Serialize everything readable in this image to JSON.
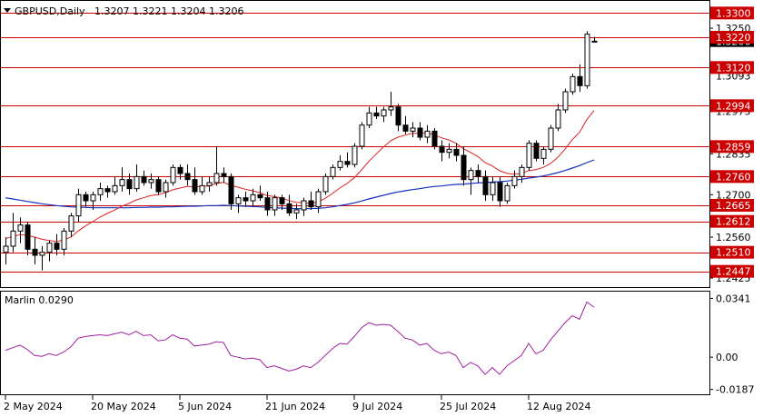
{
  "header": {
    "symbol_label": "GBPUSD,Daily",
    "ohlc_label": "1.3207 1.3221 1.3204 1.3206"
  },
  "price_axis": {
    "ticks": [
      "1.3250",
      "1.3120",
      "1.2975",
      "1.2835",
      "1.2700",
      "1.2560",
      "1.2425"
    ],
    "tick_values": [
      1.325,
      1.312,
      1.2975,
      1.2835,
      1.27,
      1.256,
      1.2425
    ],
    "range": [
      1.2395,
      1.334
    ]
  },
  "levels": [
    {
      "label": "1.3300",
      "value": 1.33
    },
    {
      "label": "1.3220",
      "value": 1.322
    },
    {
      "label": "1.3120",
      "value": 1.312
    },
    {
      "label": "1.2994",
      "value": 1.2994
    },
    {
      "label": "1.2859",
      "value": 1.2859
    },
    {
      "label": "1.2760",
      "value": 1.276
    },
    {
      "label": "1.2665",
      "value": 1.2665
    },
    {
      "label": "1.2612",
      "value": 1.2612
    },
    {
      "label": "1.2510",
      "value": 1.251
    },
    {
      "label": "1.2447",
      "value": 1.2447
    }
  ],
  "bid_label": "1.3206",
  "bid_value": 1.3206,
  "extra_labels": [
    {
      "label": "1.3093",
      "value": 1.3093
    }
  ],
  "indicator": {
    "name_label": "Marlin 0.0290",
    "ticks": [
      "0.0341",
      "0.00",
      "-0.0187"
    ],
    "tick_values": [
      0.0341,
      0.0,
      -0.0187
    ],
    "range": [
      -0.0215,
      0.038
    ]
  },
  "time_axis": {
    "labels": [
      "2 May 2024",
      "20 May 2024",
      "5 Jun 2024",
      "21 Jun 2024",
      "9 Jul 2024",
      "25 Jul 2024",
      "12 Aug 2024"
    ],
    "label_index": [
      0,
      12,
      24,
      36,
      48,
      60,
      72
    ]
  },
  "colors": {
    "bull_candle": "#ffffff",
    "bear_candle": "#000000",
    "level_line": "#cc0000",
    "level_tag": "#cc0000",
    "ma_fast": "#e02020",
    "ma_slow": "#1030c0",
    "oscillator": "#a020a0",
    "grid": "#d8d8d8"
  },
  "chart_data": {
    "type": "candlestick",
    "symbol": "GBPUSD",
    "timeframe": "Daily",
    "candles": [
      [
        1.251,
        1.256,
        1.247,
        1.253
      ],
      [
        1.253,
        1.264,
        1.251,
        1.258
      ],
      [
        1.258,
        1.2625,
        1.254,
        1.26
      ],
      [
        1.26,
        1.261,
        1.25,
        1.252
      ],
      [
        1.252,
        1.256,
        1.247,
        1.25
      ],
      [
        1.25,
        1.253,
        1.245,
        1.251
      ],
      [
        1.251,
        1.255,
        1.248,
        1.254
      ],
      [
        1.254,
        1.257,
        1.25,
        1.252
      ],
      [
        1.252,
        1.259,
        1.25,
        1.258
      ],
      [
        1.258,
        1.264,
        1.256,
        1.263
      ],
      [
        1.263,
        1.272,
        1.261,
        1.27
      ],
      [
        1.27,
        1.271,
        1.266,
        1.268
      ],
      [
        1.268,
        1.271,
        1.265,
        1.27
      ],
      [
        1.27,
        1.274,
        1.268,
        1.272
      ],
      [
        1.272,
        1.273,
        1.269,
        1.271
      ],
      [
        1.271,
        1.276,
        1.27,
        1.273
      ],
      [
        1.273,
        1.279,
        1.271,
        1.275
      ],
      [
        1.275,
        1.277,
        1.27,
        1.272
      ],
      [
        1.272,
        1.28,
        1.271,
        1.276
      ],
      [
        1.276,
        1.278,
        1.273,
        1.274
      ],
      [
        1.274,
        1.277,
        1.272,
        1.275
      ],
      [
        1.275,
        1.276,
        1.27,
        1.271
      ],
      [
        1.271,
        1.275,
        1.269,
        1.274
      ],
      [
        1.274,
        1.28,
        1.273,
        1.279
      ],
      [
        1.279,
        1.28,
        1.275,
        1.277
      ],
      [
        1.277,
        1.28,
        1.273,
        1.275
      ],
      [
        1.275,
        1.279,
        1.27,
        1.271
      ],
      [
        1.271,
        1.276,
        1.27,
        1.273
      ],
      [
        1.273,
        1.276,
        1.271,
        1.274
      ],
      [
        1.274,
        1.286,
        1.273,
        1.277
      ],
      [
        1.277,
        1.279,
        1.274,
        1.276
      ],
      [
        1.276,
        1.277,
        1.265,
        1.267
      ],
      [
        1.267,
        1.27,
        1.264,
        1.269
      ],
      [
        1.269,
        1.271,
        1.266,
        1.268
      ],
      [
        1.268,
        1.272,
        1.266,
        1.27
      ],
      [
        1.27,
        1.273,
        1.268,
        1.269
      ],
      [
        1.269,
        1.271,
        1.263,
        1.265
      ],
      [
        1.265,
        1.27,
        1.263,
        1.269
      ],
      [
        1.269,
        1.27,
        1.265,
        1.267
      ],
      [
        1.267,
        1.27,
        1.263,
        1.264
      ],
      [
        1.264,
        1.267,
        1.262,
        1.265
      ],
      [
        1.265,
        1.269,
        1.263,
        1.268
      ],
      [
        1.268,
        1.271,
        1.265,
        1.266
      ],
      [
        1.266,
        1.272,
        1.264,
        1.271
      ],
      [
        1.271,
        1.277,
        1.27,
        1.276
      ],
      [
        1.276,
        1.28,
        1.275,
        1.279
      ],
      [
        1.279,
        1.283,
        1.278,
        1.281
      ],
      [
        1.281,
        1.284,
        1.279,
        1.28
      ],
      [
        1.28,
        1.287,
        1.279,
        1.286
      ],
      [
        1.286,
        1.294,
        1.285,
        1.293
      ],
      [
        1.293,
        1.299,
        1.292,
        1.297
      ],
      [
        1.297,
        1.299,
        1.295,
        1.296
      ],
      [
        1.296,
        1.299,
        1.294,
        1.298
      ],
      [
        1.298,
        1.304,
        1.296,
        1.299
      ],
      [
        1.299,
        1.3,
        1.291,
        1.293
      ],
      [
        1.293,
        1.296,
        1.29,
        1.291
      ],
      [
        1.291,
        1.294,
        1.289,
        1.292
      ],
      [
        1.292,
        1.294,
        1.288,
        1.289
      ],
      [
        1.289,
        1.293,
        1.287,
        1.291
      ],
      [
        1.291,
        1.292,
        1.285,
        1.286
      ],
      [
        1.286,
        1.288,
        1.281,
        1.284
      ],
      [
        1.284,
        1.287,
        1.282,
        1.285
      ],
      [
        1.285,
        1.287,
        1.281,
        1.283
      ],
      [
        1.283,
        1.286,
        1.273,
        1.275
      ],
      [
        1.275,
        1.279,
        1.27,
        1.278
      ],
      [
        1.278,
        1.28,
        1.274,
        1.276
      ],
      [
        1.276,
        1.278,
        1.268,
        1.27
      ],
      [
        1.27,
        1.276,
        1.268,
        1.274
      ],
      [
        1.274,
        1.276,
        1.266,
        1.268
      ],
      [
        1.268,
        1.274,
        1.267,
        1.273
      ],
      [
        1.273,
        1.278,
        1.272,
        1.276
      ],
      [
        1.276,
        1.28,
        1.274,
        1.279
      ],
      [
        1.279,
        1.288,
        1.278,
        1.287
      ],
      [
        1.287,
        1.288,
        1.281,
        1.282
      ],
      [
        1.282,
        1.286,
        1.28,
        1.285
      ],
      [
        1.285,
        1.293,
        1.284,
        1.292
      ],
      [
        1.292,
        1.3,
        1.291,
        1.298
      ],
      [
        1.298,
        1.305,
        1.297,
        1.304
      ],
      [
        1.304,
        1.31,
        1.303,
        1.309
      ],
      [
        1.309,
        1.313,
        1.304,
        1.306
      ],
      [
        1.306,
        1.324,
        1.305,
        1.323
      ],
      [
        1.3207,
        1.3221,
        1.3204,
        1.3206
      ]
    ],
    "ma_fast": [
      1.2555,
      1.2562,
      1.2568,
      1.2566,
      1.256,
      1.2553,
      1.2549,
      1.2546,
      1.255,
      1.256,
      1.258,
      1.2597,
      1.2611,
      1.2626,
      1.2638,
      1.2649,
      1.2662,
      1.2671,
      1.2683,
      1.269,
      1.2697,
      1.27,
      1.2706,
      1.2716,
      1.2722,
      1.2727,
      1.2726,
      1.2727,
      1.2729,
      1.2737,
      1.2741,
      1.2731,
      1.2725,
      1.2718,
      1.2713,
      1.2707,
      1.2697,
      1.2694,
      1.2689,
      1.2681,
      1.2675,
      1.2674,
      1.2671,
      1.2676,
      1.2688,
      1.2704,
      1.2722,
      1.2737,
      1.2756,
      1.2782,
      1.281,
      1.2834,
      1.2857,
      1.2878,
      1.289,
      1.2897,
      1.2903,
      1.2903,
      1.2905,
      1.2898,
      1.2888,
      1.2881,
      1.287,
      1.2852,
      1.284,
      1.2826,
      1.2806,
      1.2795,
      1.2779,
      1.2771,
      1.2768,
      1.277,
      1.278,
      1.2783,
      1.279,
      1.2803,
      1.2823,
      1.285,
      1.2882,
      1.2906,
      1.2948,
      1.2978
    ],
    "ma_slow": [
      1.269,
      1.2686,
      1.2682,
      1.2678,
      1.2674,
      1.267,
      1.2667,
      1.2664,
      1.2662,
      1.266,
      1.2659,
      1.2658,
      1.2657,
      1.2657,
      1.2657,
      1.2657,
      1.2657,
      1.2657,
      1.2658,
      1.2658,
      1.2659,
      1.2659,
      1.266,
      1.266,
      1.2661,
      1.2662,
      1.2662,
      1.2663,
      1.2664,
      1.2664,
      1.2665,
      1.2664,
      1.2663,
      1.2662,
      1.2661,
      1.266,
      1.2658,
      1.2657,
      1.2656,
      1.2655,
      1.2654,
      1.2654,
      1.2654,
      1.2655,
      1.2657,
      1.266,
      1.2664,
      1.2668,
      1.2673,
      1.2679,
      1.2686,
      1.2692,
      1.2698,
      1.2704,
      1.2709,
      1.2713,
      1.2717,
      1.272,
      1.2724,
      1.2727,
      1.2729,
      1.2732,
      1.2734,
      1.2735,
      1.2737,
      1.2739,
      1.274,
      1.2742,
      1.2743,
      1.2745,
      1.2748,
      1.2751,
      1.2755,
      1.2758,
      1.2762,
      1.2767,
      1.2773,
      1.278,
      1.2788,
      1.2796,
      1.2806,
      1.2815
    ],
    "oscillator": [
      0.004,
      0.0055,
      0.007,
      0.0045,
      0.001,
      0.0005,
      0.002,
      0.001,
      0.003,
      0.006,
      0.011,
      0.012,
      0.0125,
      0.013,
      0.0125,
      0.0135,
      0.0145,
      0.013,
      0.015,
      0.0125,
      0.013,
      0.0095,
      0.01,
      0.013,
      0.011,
      0.0105,
      0.0065,
      0.007,
      0.0075,
      0.009,
      0.0085,
      0.001,
      0.0,
      -0.001,
      -0.0005,
      -0.0015,
      -0.006,
      -0.005,
      -0.0065,
      -0.008,
      -0.007,
      -0.005,
      -0.006,
      -0.003,
      0.001,
      0.005,
      0.008,
      0.0075,
      0.012,
      0.017,
      0.02,
      0.0185,
      0.019,
      0.0185,
      0.015,
      0.011,
      0.01,
      0.007,
      0.008,
      0.004,
      0.002,
      0.003,
      0.001,
      -0.006,
      -0.003,
      -0.005,
      -0.01,
      -0.006,
      -0.01,
      -0.005,
      -0.002,
      0.001,
      0.008,
      0.002,
      0.004,
      0.01,
      0.015,
      0.02,
      0.024,
      0.022,
      0.032,
      0.029
    ]
  }
}
